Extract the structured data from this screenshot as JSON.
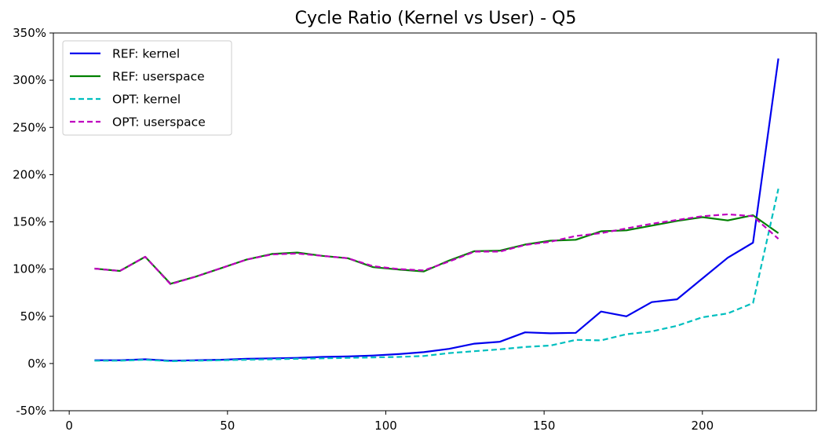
{
  "chart_data": {
    "type": "line",
    "title": "Cycle Ratio (Kernel vs User) - Q5",
    "xlabel": "",
    "ylabel": "",
    "xlim": [
      -5,
      236
    ],
    "ylim": [
      -50,
      350
    ],
    "x_ticks": [
      0,
      50,
      100,
      150,
      200
    ],
    "y_ticks": [
      -50,
      0,
      50,
      100,
      150,
      200,
      250,
      300,
      350
    ],
    "y_tick_labels": [
      "-50%",
      "0%",
      "50%",
      "100%",
      "150%",
      "200%",
      "250%",
      "300%",
      "350%"
    ],
    "legend_position": "top-left",
    "grid": false,
    "x": [
      8,
      16,
      24,
      32,
      40,
      48,
      56,
      64,
      72,
      80,
      88,
      96,
      104,
      112,
      120,
      128,
      136,
      144,
      152,
      160,
      168,
      176,
      184,
      192,
      200,
      208,
      216,
      224
    ],
    "series": [
      {
        "name": "REF: kernel",
        "color": "#0000ee",
        "dash": "solid",
        "values": [
          3.5,
          3.5,
          4.5,
          3,
          3.5,
          4,
          5,
          5.5,
          6,
          7,
          7.5,
          8.5,
          10,
          12,
          15.5,
          21,
          23,
          33,
          32,
          32.5,
          55,
          50,
          65,
          68,
          90,
          112,
          128,
          323
        ]
      },
      {
        "name": "REF: userspace",
        "color": "#008000",
        "dash": "solid",
        "values": [
          100.5,
          98,
          113,
          84.5,
          92,
          101,
          110,
          116,
          117.5,
          114,
          111.5,
          102,
          99.5,
          97.5,
          109,
          119,
          119.5,
          126,
          130,
          131,
          140,
          141,
          146,
          151,
          155,
          151.5,
          157,
          138
        ]
      },
      {
        "name": "OPT: kernel",
        "color": "#00bfbf",
        "dash": "dashed",
        "values": [
          3,
          3,
          4,
          2.5,
          3,
          3.5,
          4,
          4.5,
          5,
          5.5,
          6,
          6.5,
          7,
          8,
          11,
          13,
          15,
          17.5,
          19,
          25,
          24.5,
          31,
          34,
          40,
          49,
          53,
          64,
          185
        ]
      },
      {
        "name": "OPT: userspace",
        "color": "#bf00bf",
        "dash": "dashed",
        "values": [
          100.5,
          98,
          113,
          84,
          92,
          101,
          110,
          115.5,
          116.5,
          114,
          111.5,
          103,
          100,
          98.5,
          108,
          118.5,
          118.5,
          125.5,
          129,
          135,
          138,
          143,
          148,
          152,
          156,
          158,
          156,
          132
        ]
      }
    ]
  }
}
